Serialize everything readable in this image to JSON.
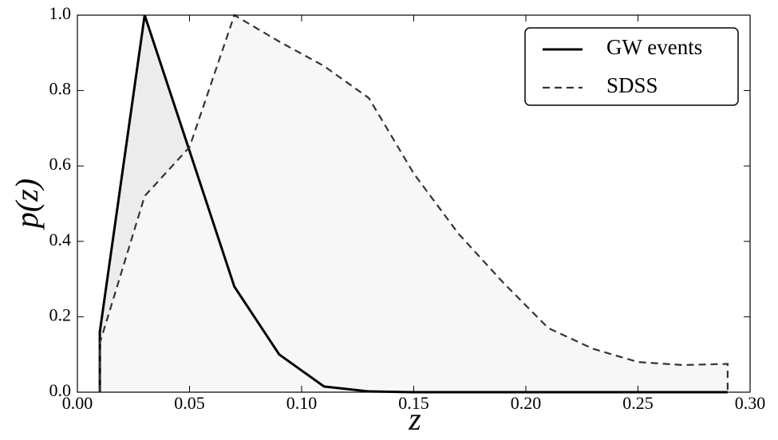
{
  "chart_data": {
    "type": "line",
    "xlabel": "z",
    "ylabel": "p(z)",
    "x": [
      0.01,
      0.03,
      0.05,
      0.07,
      0.09,
      0.11,
      0.13,
      0.15,
      0.17,
      0.19,
      0.21,
      0.23,
      0.25,
      0.27,
      0.29
    ],
    "series": [
      {
        "name": "GW events",
        "color": "#000000",
        "linestyle": "solid",
        "fill": "#ececec",
        "values": [
          0.16,
          1.0,
          0.64,
          0.28,
          0.1,
          0.015,
          0.002,
          0,
          0,
          0,
          0,
          0,
          0,
          0,
          0
        ]
      },
      {
        "name": "SDSS",
        "color": "#333333",
        "linestyle": "dashed",
        "fill": "#f7f7f7",
        "values": [
          0.13,
          0.52,
          0.65,
          1.0,
          0.93,
          0.865,
          0.78,
          0.58,
          0.42,
          0.29,
          0.17,
          0.115,
          0.08,
          0.072,
          0.075
        ]
      }
    ],
    "xlim": [
      0,
      0.3
    ],
    "xticks": [
      {
        "value": 0,
        "label": "0.00"
      },
      {
        "value": 0.05,
        "label": "0.05"
      },
      {
        "value": 0.1,
        "label": "0.10"
      },
      {
        "value": 0.15,
        "label": "0.15"
      },
      {
        "value": 0.2,
        "label": "0.20"
      },
      {
        "value": 0.25,
        "label": "0.25"
      },
      {
        "value": 0.3,
        "label": "0.30"
      }
    ],
    "ylim": [
      0,
      1
    ],
    "yticks": [
      {
        "value": 0,
        "label": "0.0"
      },
      {
        "value": 0.2,
        "label": "0.2"
      },
      {
        "value": 0.4,
        "label": "0.4"
      },
      {
        "value": 0.6,
        "label": "0.6"
      },
      {
        "value": 0.8,
        "label": "0.8"
      },
      {
        "value": 1,
        "label": "1.0"
      }
    ],
    "grid": false,
    "legend": "upper right"
  }
}
